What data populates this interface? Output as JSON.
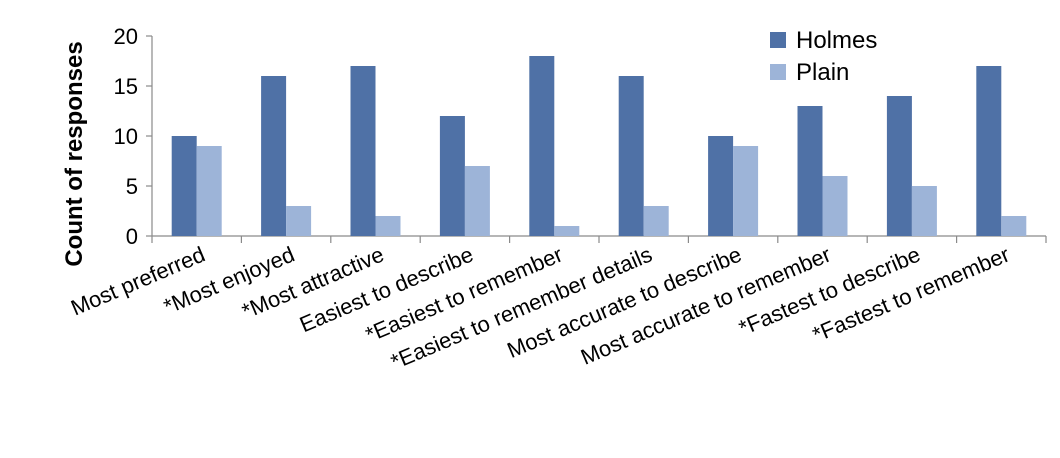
{
  "chart_data": {
    "type": "bar",
    "title": "",
    "xlabel": "",
    "ylabel": "Count of responses",
    "ylim": [
      0,
      20
    ],
    "yticks": [
      0,
      5,
      10,
      15,
      20
    ],
    "grid": false,
    "legend_position": "top-right",
    "categories": [
      "Most preferred",
      "*Most enjoyed",
      "*Most attractive",
      "Easiest to describe",
      "*Easiest to remember",
      "*Easiest to remember details",
      "Most accurate to describe",
      "Most accurate to remember",
      "*Fastest to describe",
      "*Fastest to remember"
    ],
    "series": [
      {
        "name": "Holmes",
        "color": "#4f71a6",
        "values": [
          10,
          16,
          17,
          12,
          18,
          16,
          10,
          13,
          14,
          17
        ]
      },
      {
        "name": "Plain",
        "color": "#9db4d8",
        "values": [
          9,
          3,
          2,
          7,
          1,
          3,
          9,
          6,
          5,
          2
        ]
      }
    ]
  }
}
